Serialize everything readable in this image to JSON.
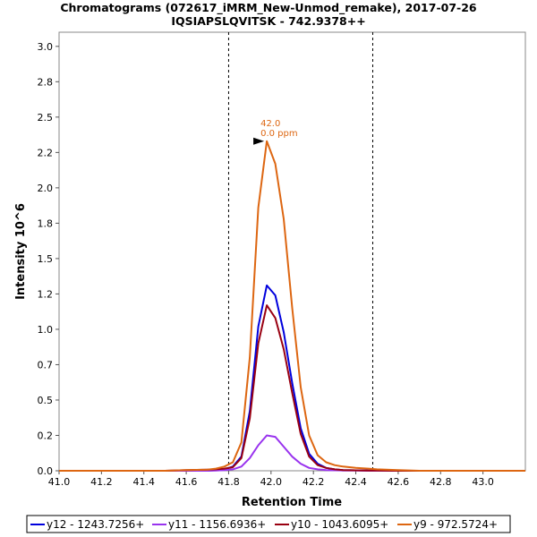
{
  "chart_data": {
    "type": "line",
    "title": "Chromatograms (072617_iMRM_New-Unmod_remake), 2017-07-26",
    "subtitle": "IQSIAPSLQVITSK - 742.9378++",
    "xlabel": "Retention Time",
    "ylabel": "Intensity 10^6",
    "xlim": [
      41.0,
      43.2
    ],
    "ylim": [
      0,
      3.1
    ],
    "x_ticks": [
      "41.0",
      "41.2",
      "41.4",
      "41.6",
      "41.8",
      "42.0",
      "42.2",
      "42.4",
      "42.6",
      "42.8",
      "43.0"
    ],
    "y_ticks": [
      "0.0",
      "0.2",
      "0.5",
      "0.7",
      "1.0",
      "1.2",
      "1.5",
      "1.8",
      "2.0",
      "2.2",
      "2.5",
      "2.8",
      "3.0"
    ],
    "x_tick_values": [
      41.0,
      41.2,
      41.4,
      41.6,
      41.8,
      42.0,
      42.2,
      42.4,
      42.6,
      42.8,
      43.0
    ],
    "y_tick_values": [
      0,
      0.25,
      0.5,
      0.75,
      1.0,
      1.25,
      1.5,
      1.75,
      2.0,
      2.25,
      2.5,
      2.75,
      3.0
    ],
    "vlines": [
      41.8,
      42.48
    ],
    "annotation": {
      "x": 41.98,
      "y": 2.36,
      "text1": "42.0",
      "text2": "0.0 ppm"
    },
    "x": [
      41.0,
      41.1,
      41.2,
      41.3,
      41.4,
      41.5,
      41.6,
      41.7,
      41.74,
      41.78,
      41.82,
      41.86,
      41.9,
      41.94,
      41.98,
      42.02,
      42.06,
      42.1,
      42.14,
      42.18,
      42.22,
      42.26,
      42.3,
      42.34,
      42.4,
      42.46,
      42.5,
      42.6,
      42.7,
      42.8,
      42.9,
      43.0,
      43.1,
      43.2
    ],
    "series": [
      {
        "name": "y12 - 1243.7256+",
        "color": "#0000dd",
        "values": [
          0.0,
          0.0,
          0.0,
          0.0,
          0.0,
          0.0,
          0.0,
          0.0,
          0.005,
          0.01,
          0.03,
          0.1,
          0.42,
          1.02,
          1.31,
          1.24,
          0.98,
          0.62,
          0.3,
          0.12,
          0.05,
          0.02,
          0.01,
          0.005,
          0.003,
          0.002,
          0.001,
          0.0,
          0.0,
          0.0,
          0.0,
          0.0,
          0.0,
          0.0
        ]
      },
      {
        "name": "y11 - 1156.6936+",
        "color": "#9933ee",
        "values": [
          0.0,
          0.0,
          0.0,
          0.0,
          0.0,
          0.0,
          0.0,
          0.0,
          0.002,
          0.005,
          0.01,
          0.03,
          0.09,
          0.18,
          0.25,
          0.24,
          0.17,
          0.1,
          0.05,
          0.02,
          0.01,
          0.005,
          0.003,
          0.002,
          0.001,
          0.0,
          0.0,
          0.0,
          0.0,
          0.0,
          0.0,
          0.0,
          0.0,
          0.0
        ]
      },
      {
        "name": "y10 - 1043.6095+",
        "color": "#990011",
        "values": [
          0.0,
          0.0,
          0.0,
          0.0,
          0.0,
          0.0,
          0.005,
          0.008,
          0.01,
          0.015,
          0.025,
          0.09,
          0.37,
          0.9,
          1.17,
          1.08,
          0.86,
          0.55,
          0.26,
          0.1,
          0.04,
          0.02,
          0.01,
          0.005,
          0.003,
          0.002,
          0.001,
          0.0,
          0.0,
          0.0,
          0.0,
          0.0,
          0.0,
          0.0
        ]
      },
      {
        "name": "y9 - 972.5724+",
        "color": "#dd6611",
        "values": [
          0.0,
          0.0,
          0.0,
          0.0,
          0.0,
          0.0,
          0.005,
          0.008,
          0.015,
          0.03,
          0.06,
          0.2,
          0.8,
          1.86,
          2.33,
          2.17,
          1.78,
          1.15,
          0.59,
          0.25,
          0.11,
          0.06,
          0.04,
          0.03,
          0.02,
          0.015,
          0.01,
          0.005,
          0.0,
          0.0,
          0.0,
          0.0,
          0.0,
          0.0
        ]
      }
    ]
  }
}
